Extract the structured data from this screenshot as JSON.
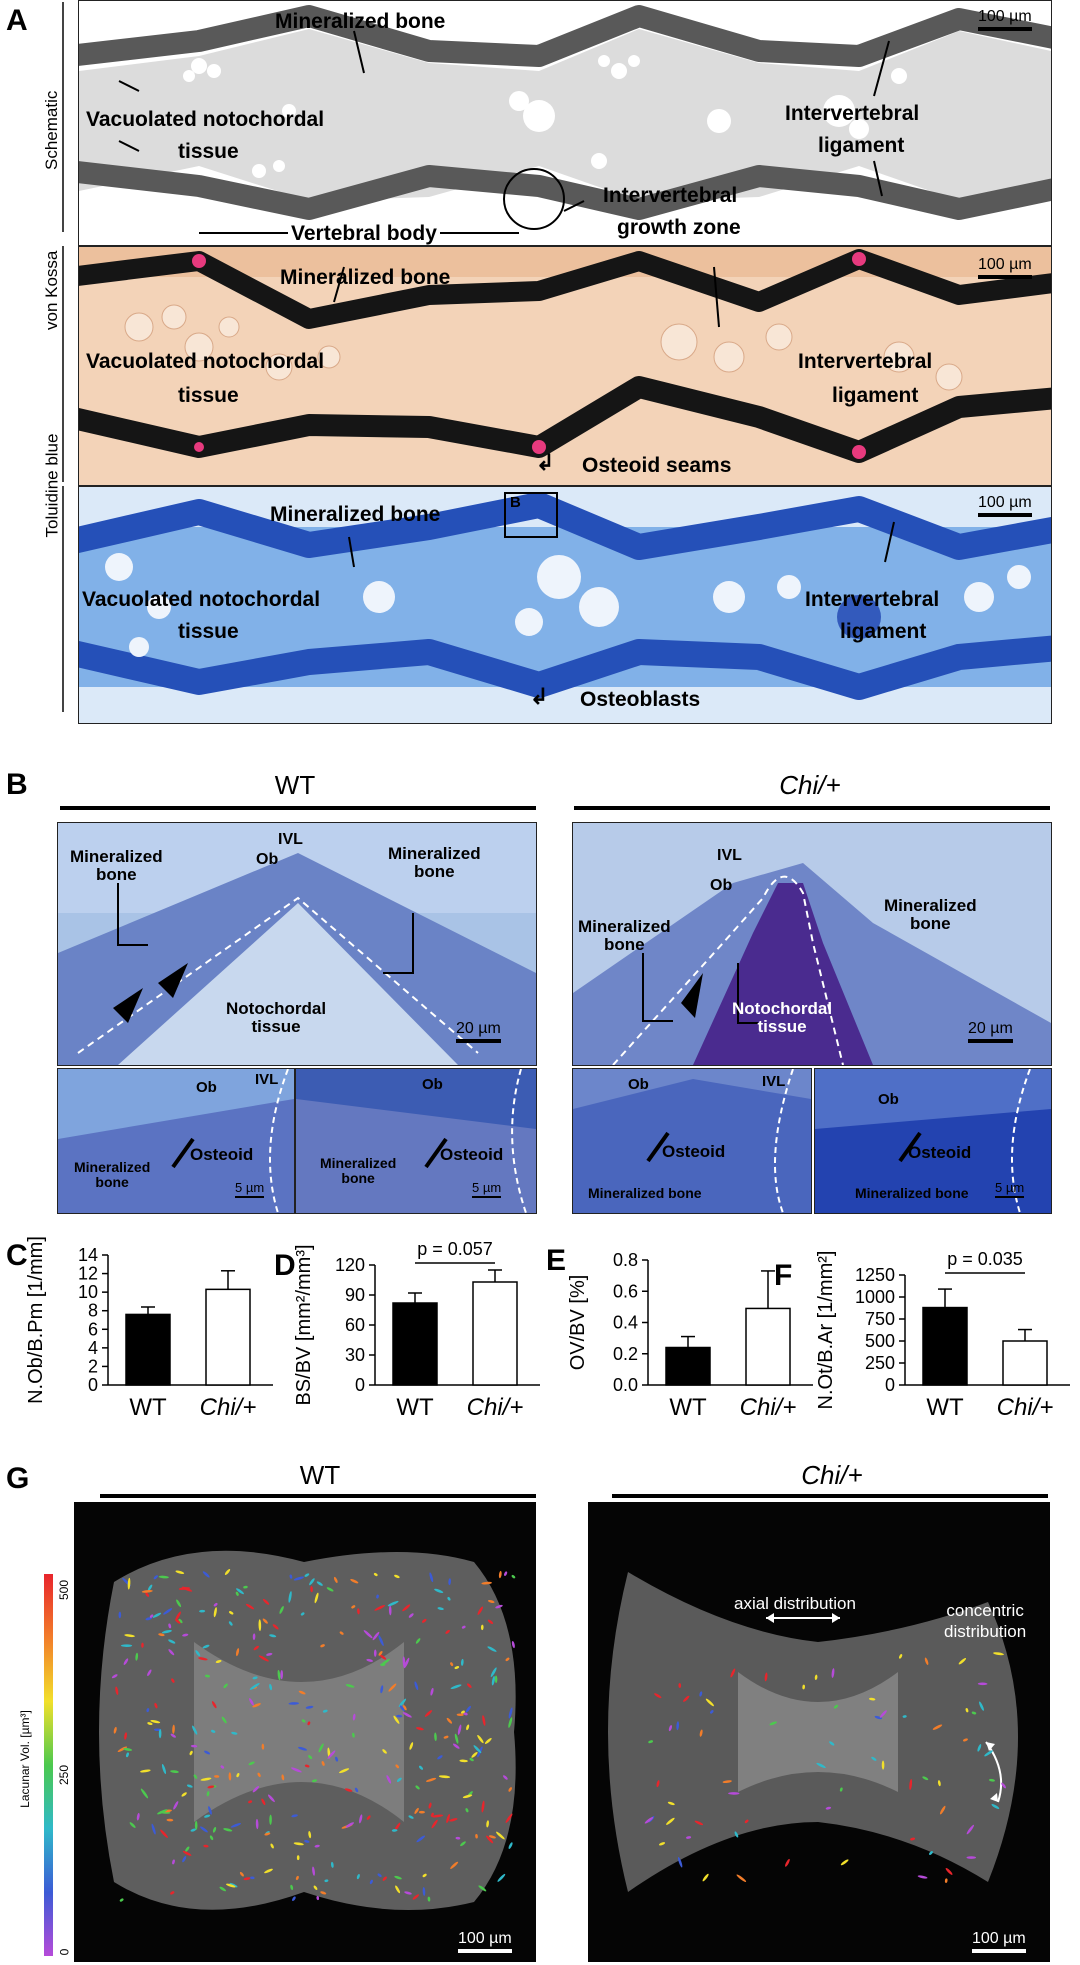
{
  "panelA": {
    "letter": "A",
    "rows": [
      {
        "side_label": "Schematic",
        "scalebar": "100 µm",
        "labels": {
          "mineralized": "Mineralized bone",
          "vac1": "Vacuolated notochordal",
          "vac2": "tissue",
          "ivl1": "Intervertebral",
          "ivl2": "ligament",
          "igz1": "Intervertebral",
          "igz2": "growth zone",
          "vb": "Vertebral body"
        }
      },
      {
        "side_label": "von Kossa",
        "scalebar": "100 µm",
        "labels": {
          "mineralized": "Mineralized bone",
          "vac1": "Vacuolated notochordal",
          "vac2": "tissue",
          "ivl1": "Intervertebral",
          "ivl2": "ligament",
          "extra": "Osteoid seams"
        }
      },
      {
        "side_label": "Toluidine blue",
        "scalebar": "100 µm",
        "box_label": "B",
        "labels": {
          "mineralized": "Mineralized bone",
          "vac1": "Vacuolated notochordal",
          "vac2": "tissue",
          "ivl1": "Intervertebral",
          "ivl2": "ligament",
          "extra": "Osteoblasts"
        }
      }
    ]
  },
  "panelB": {
    "letter": "B",
    "wt": {
      "title": "WT",
      "min_l1": "Mineralized",
      "min_l2": "bone",
      "min_r1": "Mineralized",
      "min_r2": "bone",
      "ivl": "IVL",
      "ob": "Ob",
      "noto1": "Notochordal",
      "noto2": "tissue",
      "scale": "20 µm",
      "inset1": {
        "ob": "Ob",
        "ivl": "IVL",
        "osteoid": "Osteoid",
        "min1": "Mineralized",
        "min2": "bone",
        "scale": "5 µm"
      },
      "inset2": {
        "ob": "Ob",
        "osteoid": "Osteoid",
        "min1": "Mineralized",
        "min2": "bone",
        "scale": "5 µm"
      }
    },
    "chi": {
      "title": "Chi/+",
      "min_l1": "Mineralized",
      "min_l2": "bone",
      "min_r1": "Mineralized",
      "min_r2": "bone",
      "ivl": "IVL",
      "ob": "Ob",
      "noto1": "Notochordal",
      "noto2": "tissue",
      "scale": "20 µm",
      "inset1": {
        "ob": "Ob",
        "ivl": "IVL",
        "osteoid": "Osteoid",
        "min": "Mineralized bone"
      },
      "inset2": {
        "ob": "Ob",
        "osteoid": "Osteoid",
        "min": "Mineralized bone",
        "scale": "5 µm"
      }
    }
  },
  "chart_data": [
    {
      "letter": "C",
      "type": "bar",
      "categories": [
        "WT",
        "Chi/+"
      ],
      "values": [
        7.6,
        10.3
      ],
      "errors": [
        0.8,
        2.0
      ],
      "ylabel": "N.Ob/B.Pm [1/mm]",
      "ylim": [
        0,
        14
      ],
      "yticks": [
        "0",
        "2",
        "4",
        "6",
        "8",
        "10",
        "12",
        "14"
      ],
      "annotation": ""
    },
    {
      "letter": "D",
      "type": "bar",
      "categories": [
        "WT",
        "Chi/+"
      ],
      "values": [
        82,
        103
      ],
      "errors": [
        10,
        12
      ],
      "ylabel": "BS/BV [mm²/mm³]",
      "ylim": [
        0,
        120
      ],
      "yticks": [
        "0",
        "30",
        "60",
        "90",
        "120"
      ],
      "annotation": "p = 0.057"
    },
    {
      "letter": "E",
      "type": "bar",
      "categories": [
        "WT",
        "Chi/+"
      ],
      "values": [
        0.24,
        0.49
      ],
      "errors": [
        0.07,
        0.24
      ],
      "ylabel": "OV/BV [%]",
      "ylim": [
        0,
        0.8
      ],
      "yticks": [
        "0.0",
        "0.2",
        "0.4",
        "0.6",
        "0.8"
      ],
      "annotation": ""
    },
    {
      "letter": "F",
      "type": "bar",
      "categories": [
        "WT",
        "Chi/+"
      ],
      "values": [
        880,
        500
      ],
      "errors": [
        210,
        130
      ],
      "ylabel": "N.Ot/B.Ar [1/mm²]",
      "ylim": [
        0,
        1250
      ],
      "yticks": [
        "0",
        "250",
        "500",
        "750",
        "1000",
        "1250"
      ],
      "annotation": "p = 0.035"
    }
  ],
  "panelG": {
    "letter": "G",
    "wt_title": "WT",
    "chi_title": "Chi/+",
    "colorbar_label": "Lacunar Vol. [µm³]",
    "colorbar_ticks": [
      "500",
      "250",
      "0"
    ],
    "axial": "axial distribution",
    "concentric1": "concentric",
    "concentric2": "distribution",
    "scale": "100 µm"
  },
  "colors": {
    "bone_dark": "#595959",
    "vk_bg": "#f3d3b8",
    "tb_bg": "#4f88d6",
    "tb_deep": "#1f45b0",
    "micro_bg": "#050505"
  }
}
